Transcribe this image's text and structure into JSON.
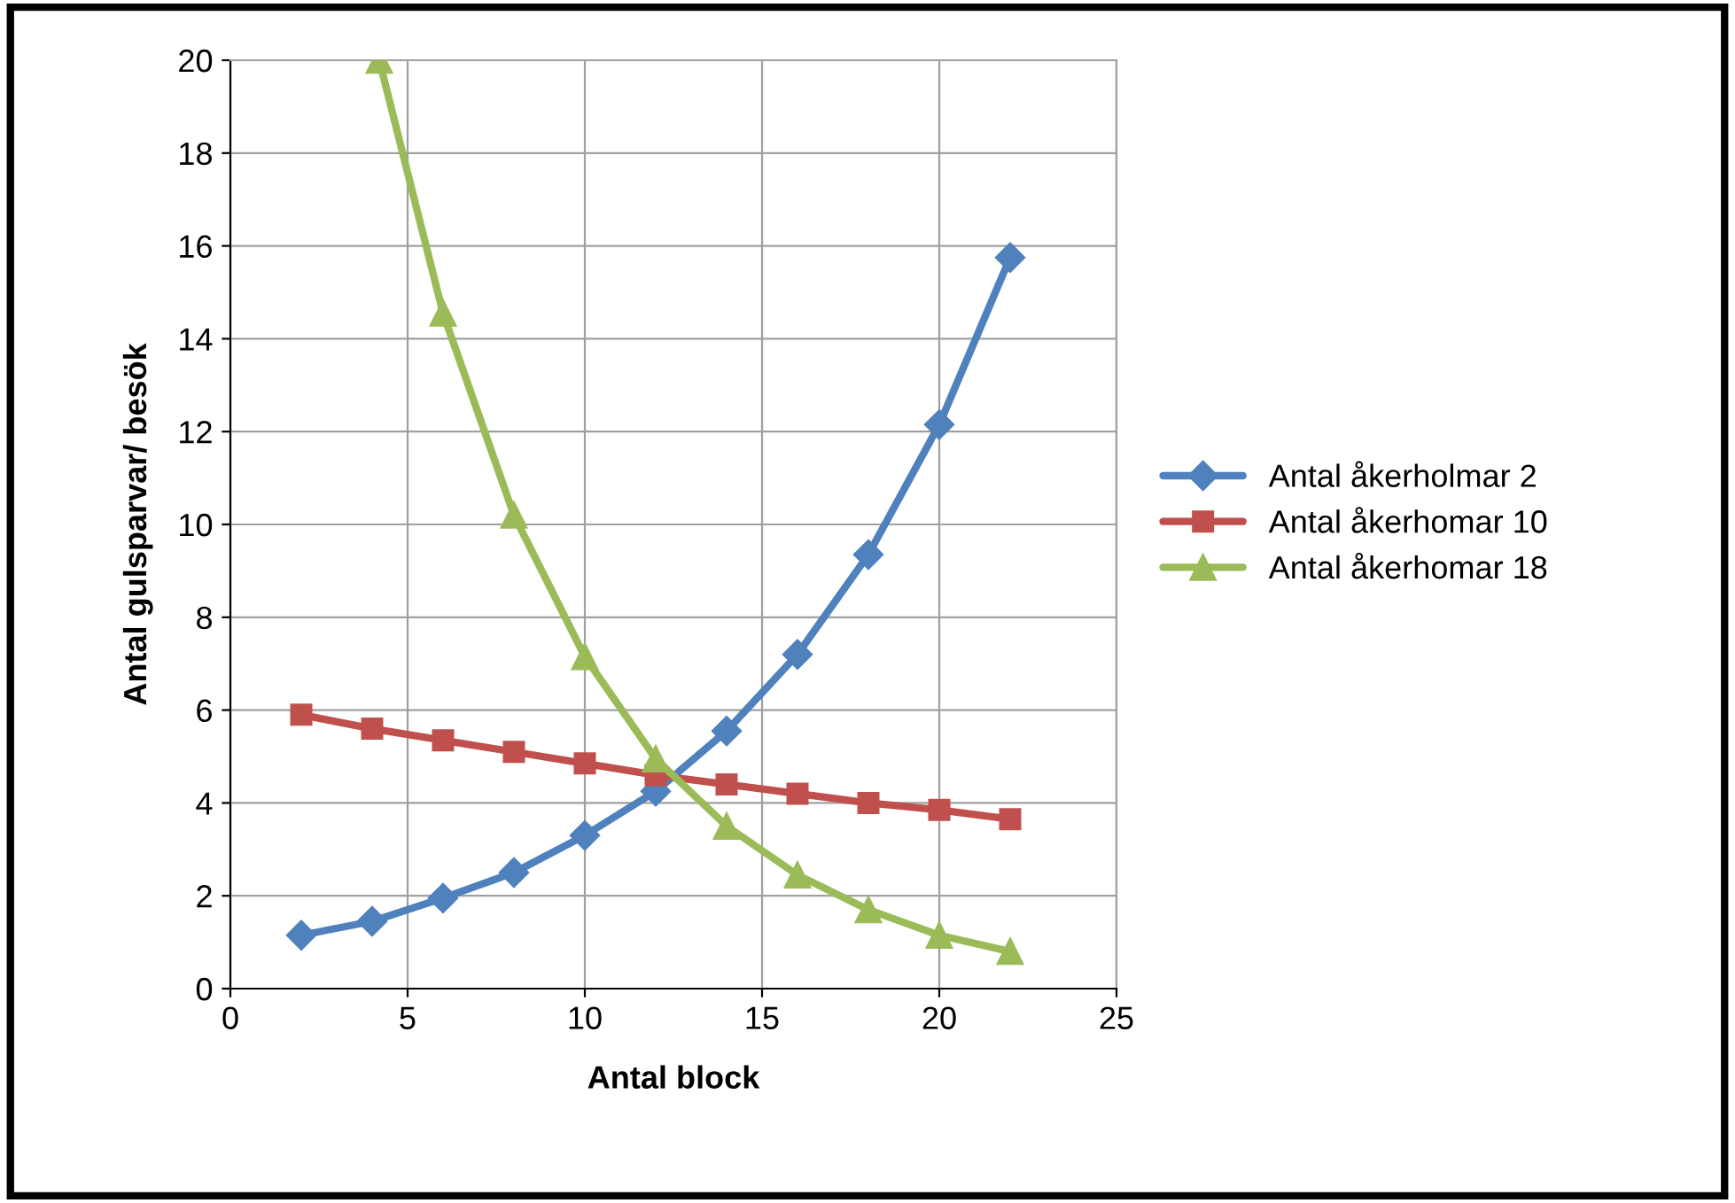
{
  "chart_data": {
    "type": "line",
    "xlabel": "Antal block",
    "ylabel": "Antal gulsparvar/ besök",
    "x": [
      2,
      4,
      6,
      8,
      10,
      12,
      14,
      16,
      18,
      20,
      22
    ],
    "series": [
      {
        "name": "Antal åkerholmar 2",
        "color": "#4f81bd",
        "marker": "diamond",
        "values": [
          1.15,
          1.45,
          1.95,
          2.5,
          3.3,
          4.25,
          5.55,
          7.2,
          9.35,
          12.15,
          15.75
        ]
      },
      {
        "name": "Antal åkerhomar 10",
        "color": "#c0504d",
        "marker": "square",
        "values": [
          5.9,
          5.6,
          5.35,
          5.1,
          4.85,
          4.6,
          4.4,
          4.2,
          4.0,
          3.85,
          3.65
        ]
      },
      {
        "name": "Antal åkerhomar 18",
        "color": "#9bbb59",
        "marker": "triangle",
        "x": [
          4.2,
          6,
          8,
          10,
          12,
          14,
          16,
          18,
          20,
          22
        ],
        "values": [
          20,
          14.55,
          10.2,
          7.15,
          4.95,
          3.5,
          2.45,
          1.7,
          1.15,
          0.8
        ]
      }
    ],
    "xlim": [
      0,
      25
    ],
    "xticks": [
      0,
      5,
      10,
      15,
      20,
      25
    ],
    "ylim": [
      0,
      20
    ],
    "yticks": [
      0,
      2,
      4,
      6,
      8,
      10,
      12,
      14,
      16,
      18,
      20
    ],
    "grid": true,
    "legend": "right",
    "line_style": "solid"
  }
}
